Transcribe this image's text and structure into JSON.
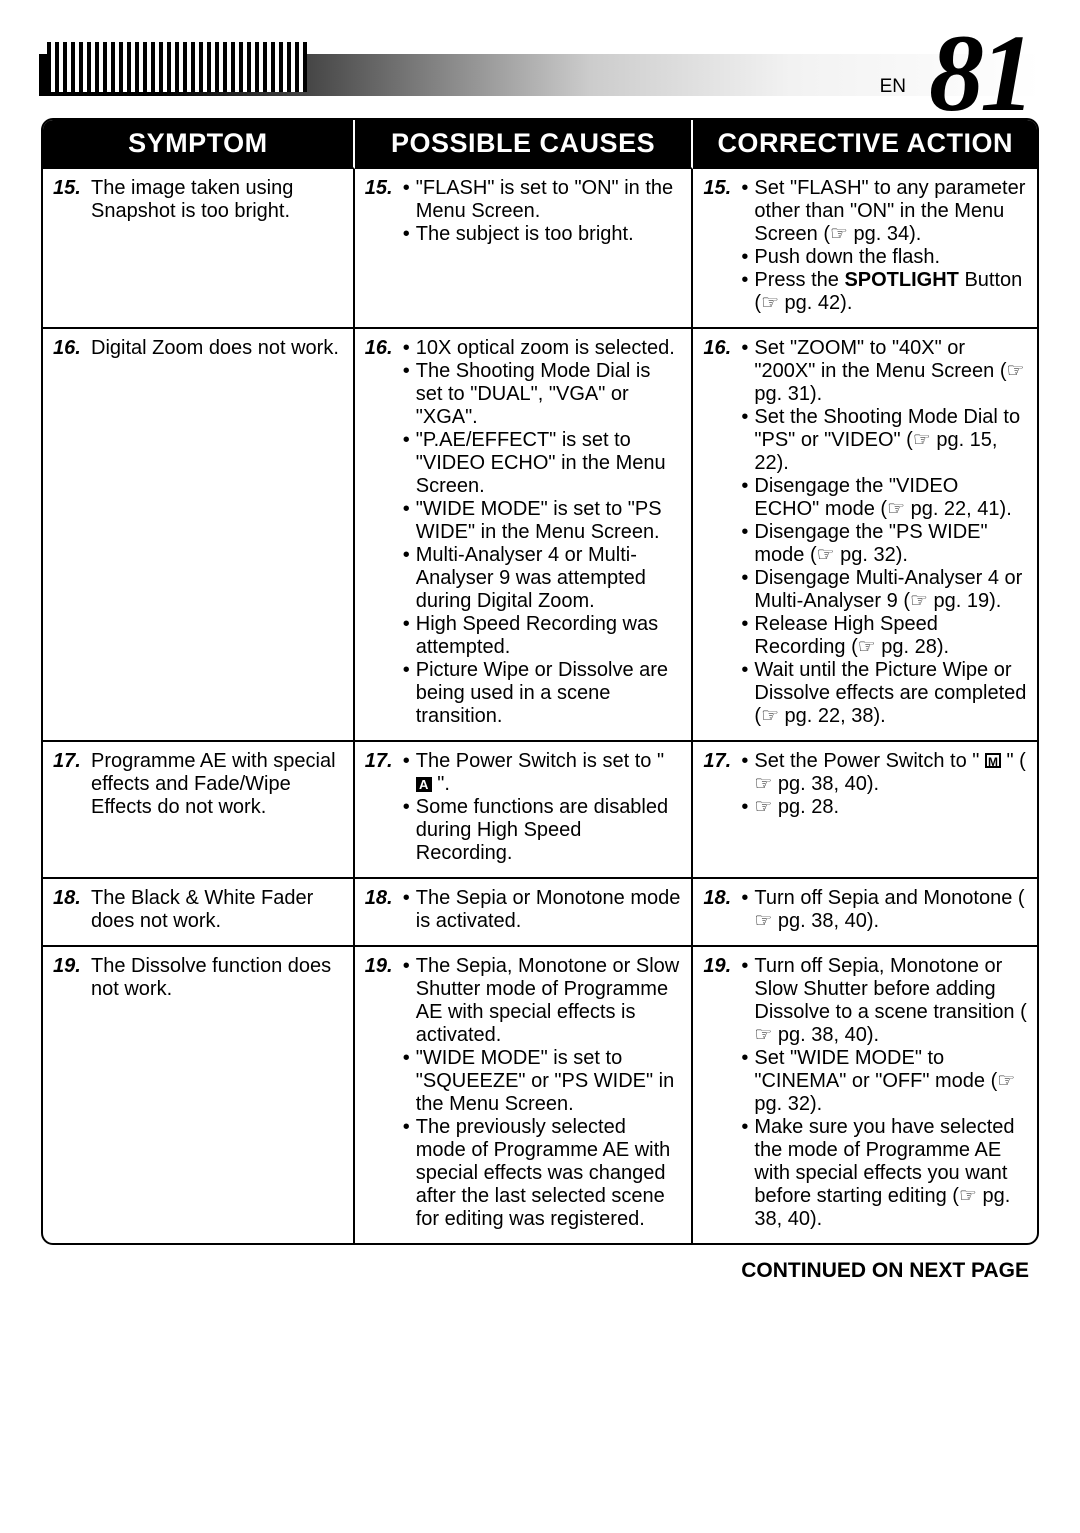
{
  "page": {
    "lang": "EN",
    "number": "81"
  },
  "table": {
    "headers": [
      "SYMPTOM",
      "POSSIBLE CAUSES",
      "CORRECTIVE ACTION"
    ],
    "rows": [
      {
        "n": "15.",
        "symptom": "The image taken using Snapshot is too bright.",
        "causes": [
          "\"FLASH\" is set to \"ON\" in the Menu Screen.",
          "The subject is too bright."
        ],
        "actions": [
          "Set \"FLASH\" to any parameter other than \"ON\" in the Menu Screen (☞ pg. 34).",
          "Push down the flash.",
          "Press the <b>SPOTLIGHT</b> Button (☞ pg. 42)."
        ]
      },
      {
        "n": "16.",
        "symptom": "Digital Zoom does not work.",
        "causes": [
          "10X optical zoom is selected.",
          "The Shooting Mode Dial is set to \"DUAL\", \"VGA\" or \"XGA\".",
          "\"P.AE/EFFECT\" is set to \"VIDEO ECHO\" in the Menu Screen.",
          "\"WIDE MODE\" is set to \"PS WIDE\" in the Menu Screen.",
          "Multi-Analyser 4 or Multi-Analyser 9 was attempted during Digital Zoom.",
          "High Speed Recording was attempted.",
          "Picture Wipe or Dissolve are being used in a scene transition."
        ],
        "actions": [
          "Set \"ZOOM\" to \"40X\" or \"200X\" in the Menu Screen (☞ pg. 31).",
          "Set the Shooting Mode Dial to \"PS\" or \"VIDEO\" (☞ pg. 15, 22).",
          "Disengage the \"VIDEO ECHO\" mode (☞ pg. 22, 41).",
          "Disengage the \"PS WIDE\" mode (☞ pg. 32).",
          "Disengage Multi-Analyser 4 or Multi-Analyser 9 (☞ pg. 19).",
          "Release High Speed Recording (☞ pg. 28).",
          "Wait until the Picture Wipe or Dissolve effects are completed (☞ pg. 22, 38)."
        ]
      },
      {
        "n": "17.",
        "symptom": "Programme AE with special effects and Fade/Wipe Effects do not work.",
        "causes": [
          "The Power Switch is set to \" <gA> \".",
          "Some functions are disabled during High Speed Recording."
        ],
        "actions": [
          "Set the Power Switch to \" <gM> \" (☞ pg. 38, 40).",
          "☞ pg. 28."
        ]
      },
      {
        "n": "18.",
        "symptom": "The Black & White Fader does not work.",
        "causes": [
          "The Sepia or Monotone mode is activated."
        ],
        "actions": [
          "Turn off Sepia and Monotone (☞ pg. 38, 40)."
        ]
      },
      {
        "n": "19.",
        "symptom": "The Dissolve function does not work.",
        "causes": [
          "The Sepia, Monotone or Slow Shutter mode of Programme AE with special effects is activated.",
          "\"WIDE MODE\" is set to \"SQUEEZE\" or \"PS WIDE\" in the Menu Screen.",
          "The previously selected mode of Programme AE with special effects was changed after the last selected scene for editing was registered."
        ],
        "actions": [
          "Turn off Sepia, Monotone or Slow Shutter before adding Dissolve to a scene transition (☞ pg. 38, 40).",
          "Set \"WIDE MODE\" to \"CINEMA\" or \"OFF\" mode (☞ pg. 32).",
          "Make sure you have selected the mode of Programme AE with special effects you want before starting editing (☞ pg. 38, 40)."
        ]
      }
    ]
  },
  "continued": "CONTINUED ON NEXT PAGE"
}
